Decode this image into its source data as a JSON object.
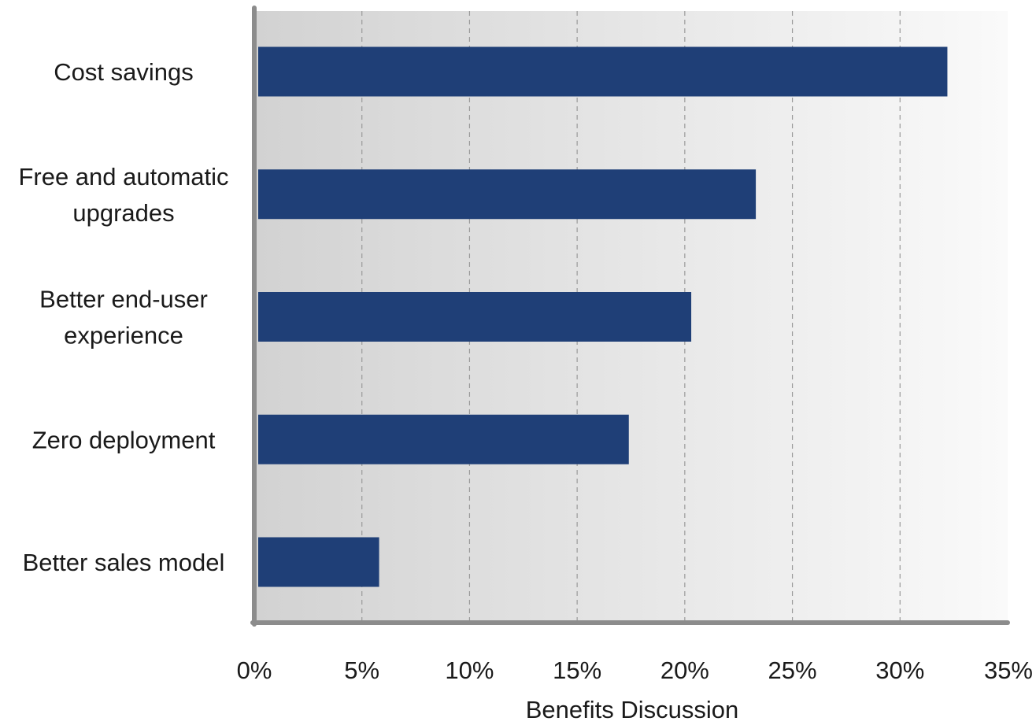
{
  "chart_data": {
    "type": "bar",
    "orientation": "horizontal",
    "categories": [
      [
        "Cost savings"
      ],
      [
        "Free and automatic",
        "upgrades"
      ],
      [
        "Better end-user",
        "experience"
      ],
      [
        "Zero deployment"
      ],
      [
        "Better sales model"
      ]
    ],
    "values": [
      32.2,
      23.3,
      20.3,
      17.4,
      5.8
    ],
    "xlabel": "Benefits Discussion",
    "ylabel": "",
    "title": "",
    "xlim": [
      0,
      35
    ],
    "xticks": [
      "0%",
      "5%",
      "10%",
      "15%",
      "20%",
      "25%",
      "30%",
      "35%"
    ],
    "grid": "vertical dashed",
    "bar_color": "#1f3f77"
  }
}
